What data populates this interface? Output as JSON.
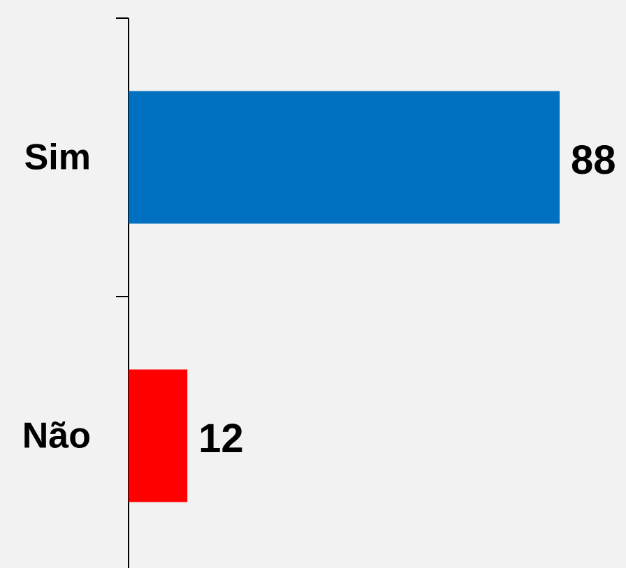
{
  "chart_data": {
    "type": "barh",
    "categories": [
      "Sim",
      "Não"
    ],
    "values": [
      88,
      12
    ],
    "colors": [
      "#0070c0",
      "#ff0000"
    ]
  }
}
